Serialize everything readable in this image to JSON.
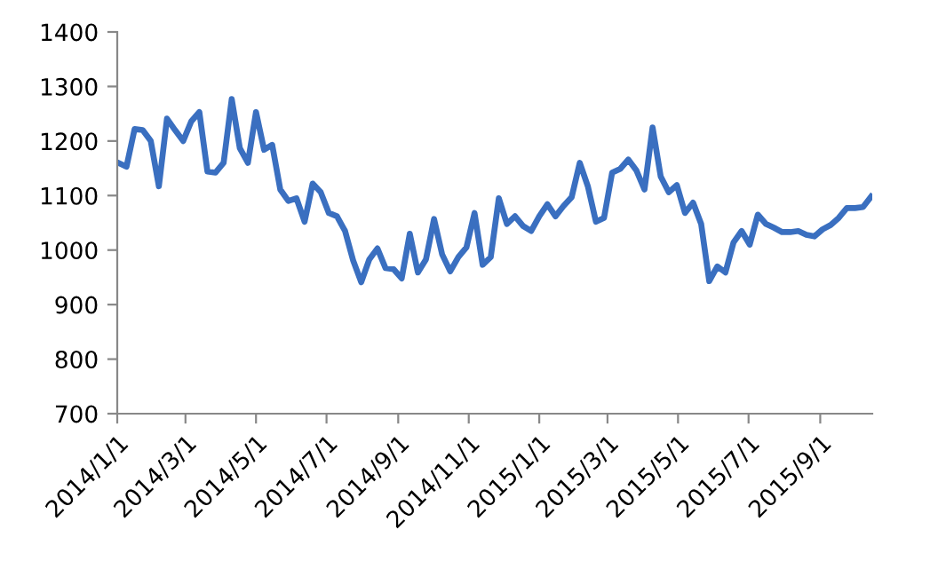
{
  "chart_data": {
    "type": "line",
    "x": [
      "2014-01-02",
      "2014-01-09",
      "2014-01-16",
      "2014-01-23",
      "2014-01-30",
      "2014-02-06",
      "2014-02-13",
      "2014-02-20",
      "2014-02-27",
      "2014-03-06",
      "2014-03-13",
      "2014-03-20",
      "2014-03-27",
      "2014-04-03",
      "2014-04-10",
      "2014-04-17",
      "2014-04-24",
      "2014-05-01",
      "2014-05-08",
      "2014-05-15",
      "2014-05-22",
      "2014-05-29",
      "2014-06-05",
      "2014-06-12",
      "2014-06-19",
      "2014-06-26",
      "2014-07-03",
      "2014-07-10",
      "2014-07-17",
      "2014-07-24",
      "2014-07-31",
      "2014-08-07",
      "2014-08-14",
      "2014-08-21",
      "2014-08-28",
      "2014-09-04",
      "2014-09-11",
      "2014-09-18",
      "2014-09-25",
      "2014-10-02",
      "2014-10-09",
      "2014-10-16",
      "2014-10-23",
      "2014-10-30",
      "2014-11-06",
      "2014-11-13",
      "2014-11-20",
      "2014-11-27",
      "2014-12-04",
      "2014-12-11",
      "2014-12-18",
      "2014-12-25",
      "2015-01-01",
      "2015-01-08",
      "2015-01-15",
      "2015-01-22",
      "2015-01-29",
      "2015-02-05",
      "2015-02-12",
      "2015-02-19",
      "2015-02-26",
      "2015-03-05",
      "2015-03-12",
      "2015-03-19",
      "2015-03-26",
      "2015-04-02",
      "2015-04-09",
      "2015-04-16",
      "2015-04-23",
      "2015-04-30",
      "2015-05-07",
      "2015-05-14",
      "2015-05-21",
      "2015-05-28",
      "2015-06-04",
      "2015-06-11",
      "2015-06-18",
      "2015-06-25",
      "2015-07-02",
      "2015-07-09",
      "2015-07-16",
      "2015-07-23",
      "2015-07-30",
      "2015-08-06",
      "2015-08-13",
      "2015-08-20",
      "2015-08-27",
      "2015-09-03",
      "2015-09-10",
      "2015-09-17",
      "2015-09-24",
      "2015-10-01",
      "2015-10-08",
      "2015-10-15"
    ],
    "series": [
      {
        "color": "#3a6fc0",
        "values": [
          1160,
          1153,
          1222,
          1220,
          1200,
          1117,
          1241,
          1220,
          1200,
          1236,
          1253,
          1144,
          1142,
          1160,
          1277,
          1187,
          1160,
          1253,
          1184,
          1193,
          1111,
          1090,
          1095,
          1052,
          1122,
          1106,
          1068,
          1062,
          1035,
          981,
          941,
          983,
          1003,
          967,
          965,
          948,
          1030,
          959,
          983,
          1057,
          992,
          961,
          987,
          1005,
          1068,
          973,
          987,
          1095,
          1048,
          1062,
          1044,
          1035,
          1062,
          1084,
          1062,
          1081,
          1097,
          1160,
          1117,
          1052,
          1059,
          1142,
          1149,
          1166,
          1146,
          1111,
          1225,
          1135,
          1106,
          1119,
          1068,
          1087,
          1048,
          943,
          970,
          959,
          1014,
          1035,
          1010,
          1065,
          1048,
          1041,
          1033,
          1033,
          1035,
          1028,
          1025,
          1038,
          1046,
          1059,
          1077,
          1077,
          1079,
          1098
        ]
      }
    ],
    "xlim": [
      "2014-01-01",
      "2015-10-16"
    ],
    "xticks": [
      {
        "value": "2014-01-01",
        "label": "2014/1/1"
      },
      {
        "value": "2014-03-01",
        "label": "2014/3/1"
      },
      {
        "value": "2014-05-01",
        "label": "2014/5/1"
      },
      {
        "value": "2014-07-01",
        "label": "2014/7/1"
      },
      {
        "value": "2014-09-01",
        "label": "2014/9/1"
      },
      {
        "value": "2014-11-01",
        "label": "2014/11/1"
      },
      {
        "value": "2015-01-01",
        "label": "2015/1/1"
      },
      {
        "value": "2015-03-01",
        "label": "2015/3/1"
      },
      {
        "value": "2015-05-01",
        "label": "2015/5/1"
      },
      {
        "value": "2015-07-01",
        "label": "2015/7/1"
      },
      {
        "value": "2015-09-01",
        "label": "2015/9/1"
      }
    ],
    "ylim": [
      700,
      1400
    ],
    "yticks": [
      700,
      800,
      900,
      1000,
      1100,
      1200,
      1300,
      1400
    ],
    "grid": false,
    "marker": "none",
    "line_style": "solid"
  }
}
